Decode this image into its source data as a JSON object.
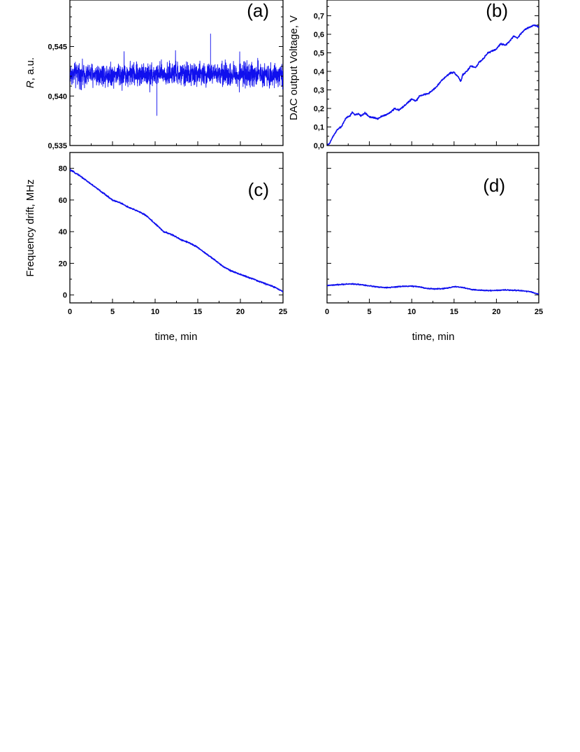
{
  "figure": {
    "line_color": "#1010ee"
  },
  "chart_data": [
    {
      "id": "a",
      "type": "line",
      "panel_label": "(a)",
      "title": "",
      "xlabel": "",
      "ylabel_italic": "R",
      "ylabel_rest": ", a.u.",
      "xlim": [
        0,
        25
      ],
      "ylim": [
        0.535,
        0.55
      ],
      "yticks": [
        0.535,
        0.54,
        0.545
      ],
      "ytick_labels": [
        "0,535",
        "0,540",
        "0,545"
      ],
      "xticks": [],
      "xtick_labels": [],
      "series": [
        {
          "x": [
            0,
            0.5,
            1,
            1.5,
            2,
            2.5,
            3,
            3.5,
            4,
            4.5,
            5,
            5.5,
            6,
            6.5,
            7,
            7.5,
            8,
            8.5,
            9,
            9.5,
            10,
            10.5,
            11,
            11.5,
            12,
            12.5,
            13,
            13.5,
            14,
            14.5,
            15,
            15.5,
            16,
            16.5,
            17,
            17.5,
            18,
            18.5,
            19,
            19.5,
            20,
            20.5,
            21,
            21.5,
            22,
            22.5,
            23,
            23.5,
            24,
            24.5,
            25
          ],
          "y": [
            0.5422,
            0.5422,
            0.5422,
            0.5422,
            0.5422,
            0.5422,
            0.5422,
            0.5422,
            0.5422,
            0.5422,
            0.5422,
            0.5422,
            0.5422,
            0.5422,
            0.5422,
            0.5422,
            0.5422,
            0.5422,
            0.5422,
            0.5422,
            0.5422,
            0.5422,
            0.5422,
            0.5422,
            0.5422,
            0.5422,
            0.5422,
            0.5422,
            0.5422,
            0.5422,
            0.5422,
            0.5422,
            0.5422,
            0.5422,
            0.5422,
            0.5422,
            0.5422,
            0.5422,
            0.5422,
            0.5422,
            0.5422,
            0.5422,
            0.5422,
            0.5422,
            0.5422,
            0.5422,
            0.5422,
            0.5422,
            0.5422,
            0.5422,
            0.5422
          ],
          "noise_amplitude": 0.0017,
          "noise_extremes": [
            0.538,
            0.5463
          ]
        }
      ]
    },
    {
      "id": "b",
      "type": "line",
      "panel_label": "(b)",
      "title": "",
      "xlabel": "",
      "ylabel": "DAC output Voltage, V",
      "xlim": [
        0,
        25
      ],
      "ylim": [
        0,
        0.8
      ],
      "yticks": [
        0,
        0.1,
        0.2,
        0.3,
        0.4,
        0.5,
        0.6,
        0.7
      ],
      "ytick_labels": [
        "0,0",
        "0,1",
        "0,2",
        "0,3",
        "0,4",
        "0,5",
        "0,6",
        "0,7"
      ],
      "xticks": [],
      "xtick_labels": [],
      "series": [
        {
          "x": [
            0,
            0.3,
            0.6,
            1,
            1.3,
            1.7,
            2,
            2.3,
            2.7,
            3,
            3.3,
            3.7,
            4,
            4.5,
            5,
            5.5,
            6,
            6.5,
            7,
            7.5,
            8,
            8.5,
            9,
            9.5,
            10,
            10.5,
            11,
            11.5,
            12,
            12.5,
            13,
            13.5,
            14,
            14.5,
            15,
            15.5,
            15.8,
            16,
            16.5,
            17,
            17.5,
            18,
            18.5,
            19,
            19.5,
            20,
            20.5,
            21,
            21.5,
            22,
            22.5,
            23,
            23.5,
            24,
            24.5,
            25
          ],
          "y": [
            0.0,
            0.01,
            0.04,
            0.07,
            0.09,
            0.1,
            0.13,
            0.15,
            0.16,
            0.18,
            0.165,
            0.17,
            0.16,
            0.175,
            0.155,
            0.15,
            0.145,
            0.16,
            0.165,
            0.18,
            0.2,
            0.19,
            0.21,
            0.23,
            0.25,
            0.24,
            0.27,
            0.275,
            0.28,
            0.3,
            0.32,
            0.35,
            0.37,
            0.39,
            0.395,
            0.37,
            0.345,
            0.38,
            0.4,
            0.43,
            0.42,
            0.45,
            0.47,
            0.5,
            0.51,
            0.52,
            0.55,
            0.54,
            0.56,
            0.59,
            0.58,
            0.61,
            0.63,
            0.64,
            0.65,
            0.64
          ],
          "noise_amplitude": 0.006
        }
      ]
    },
    {
      "id": "c",
      "type": "line",
      "panel_label": "(c)",
      "title": "",
      "xlabel": "time, min",
      "ylabel": "Frequency drift, MHz",
      "xlim": [
        0,
        25
      ],
      "ylim": [
        -5,
        90
      ],
      "yticks": [
        0,
        20,
        40,
        60,
        80
      ],
      "ytick_labels": [
        "0",
        "20",
        "40",
        "60",
        "80"
      ],
      "xticks": [
        0,
        5,
        10,
        15,
        20,
        25
      ],
      "xtick_labels": [
        "0",
        "5",
        "10",
        "15",
        "20",
        "25"
      ],
      "series": [
        {
          "x": [
            0,
            1,
            2,
            3,
            4,
            5,
            6,
            7,
            8,
            9,
            10,
            11,
            12,
            13,
            14,
            15,
            16,
            17,
            18,
            19,
            20,
            21,
            22,
            23,
            24,
            25
          ],
          "y": [
            79,
            76,
            72,
            68,
            64,
            60,
            58,
            55,
            53,
            50,
            45,
            40,
            38,
            35,
            33,
            30,
            26,
            22,
            18,
            15,
            13,
            11,
            9,
            7,
            5,
            2
          ],
          "noise_amplitude": 0.6
        }
      ]
    },
    {
      "id": "d",
      "type": "line",
      "panel_label": "(d)",
      "title": "",
      "xlabel": "time, min",
      "ylabel": "",
      "xlim": [
        0,
        25
      ],
      "ylim": [
        -5,
        90
      ],
      "yticks": [
        0,
        20,
        40,
        60,
        80
      ],
      "ytick_labels": [],
      "xticks": [
        0,
        5,
        10,
        15,
        20,
        25
      ],
      "xtick_labels": [
        "0",
        "5",
        "10",
        "15",
        "20",
        "25"
      ],
      "series": [
        {
          "x": [
            0,
            1,
            2,
            3,
            4,
            5,
            6,
            7,
            8,
            9,
            10,
            11,
            12,
            13,
            14,
            15,
            16,
            17,
            18,
            19,
            20,
            21,
            22,
            23,
            24,
            25
          ],
          "y": [
            6,
            6.3,
            6.8,
            7,
            6.5,
            5.8,
            5,
            4.6,
            5,
            5.5,
            5.6,
            5,
            4,
            3.8,
            4.2,
            5.2,
            4.8,
            3.5,
            3,
            2.8,
            2.9,
            3.2,
            3,
            2.7,
            2,
            0.5
          ],
          "noise_amplitude": 0.45
        }
      ]
    }
  ]
}
